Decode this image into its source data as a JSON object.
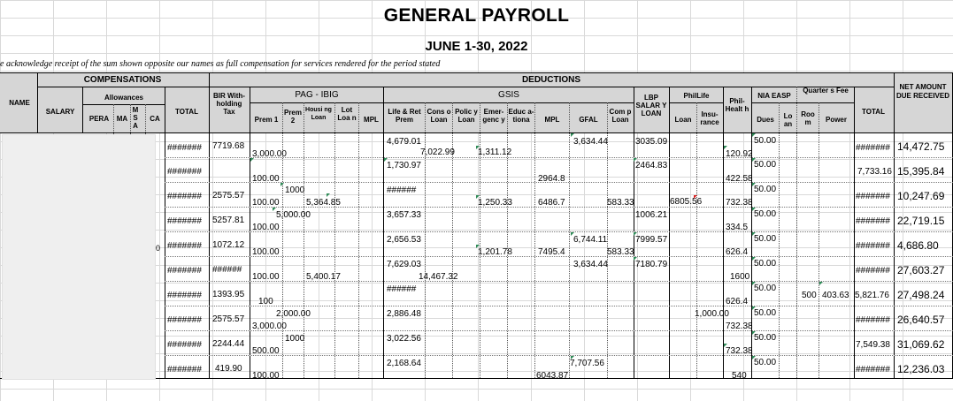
{
  "title": "GENERAL PAYROLL",
  "period": "JUNE 1-30, 2022",
  "acknowledgment": "e acknowledge receipt of the sum shown opposite our names as full compensation for services rendered for the period stated",
  "headers": {
    "name": "NAME",
    "compensations": "COMPENSATIONS",
    "salary": "SALARY",
    "allowances": "Allowances",
    "pera": "PERA",
    "ma": "MA",
    "msa": "M S A",
    "ca": "CA",
    "total1": "TOTAL",
    "deductions": "DEDUCTIONS",
    "bir": "BIR With- holding Tax",
    "pagibig": "PAG - IBIG",
    "prem1": "Prem 1",
    "prem2": "Prem 2",
    "housing": "Housi ng Loan",
    "lotloan": "Lot Loa n",
    "mpl1": "MPL",
    "gsis": "GSIS",
    "liferet": "Life & Ret Prem",
    "conso": "Cons o Loan",
    "policy": "Polic y Loan",
    "emergency": "Emer- genc y",
    "educ": "Educ a- tiona",
    "mpl2": "MPL",
    "gfal": "GFAL",
    "comp": "Com p Loan",
    "lbp": "LBP SALAR Y LOAN",
    "philife": "PhilLife",
    "loan": "Loan",
    "insurance": "Insu- rance",
    "philhealth": "Phil- Healt h",
    "niaeasp": "NIA EASP",
    "dues": "Dues",
    "loan2": "Lo an",
    "quarters": "Quarter s Fee",
    "room": "Roo m",
    "power": "Power",
    "total2": "TOTAL",
    "net": "NET AMOUNT DUE RECEIVED"
  },
  "rows": [
    {
      "total": "#######",
      "bir": "7719.68",
      "prem1": "3,000.00",
      "liferet": "4,679.01",
      "conso": "7,022.99",
      "policy": "1,311.12",
      "gfal": "3,634.44",
      "lbp": "3035.09",
      "philhealth": "120.92",
      "dues": "50.00",
      "ded_total": "#######",
      "net": "14,472.75"
    },
    {
      "total": "#######",
      "prem1": "100.00",
      "liferet": "1,730.97",
      "mpl2": "2964.8",
      "lbp": "2464.83",
      "philhealth": "422.58",
      "dues": "50.00",
      "ded_total": "7,733.16",
      "net": "15,395.84"
    },
    {
      "total": "#######",
      "bir": "2575.57",
      "prem1": "100.00",
      "prem2": "1000",
      "housing": "5,364.85",
      "liferet": "######",
      "policy": "1,250.33",
      "mpl2": "6486.7",
      "comp": "583.33",
      "ins": "6805.56",
      "philhealth": "732.38",
      "dues": "50.00",
      "ded_total": "#######",
      "net": "10,247.69"
    },
    {
      "total": "#######",
      "bir": "5257.81",
      "prem1": "100.00",
      "prem2": "5,000.00",
      "liferet": "3,657.33",
      "lbp": "1006.21",
      "philhealth": "334.5",
      "dues": "50.00",
      "ded_total": "#######",
      "net": "22,719.15"
    },
    {
      "total": "#######",
      "bir": "1072.12",
      "prem1": "100.00",
      "liferet": "2,656.53",
      "policy": "1,201.78",
      "mpl2": "7495.4",
      "gfal": "6,744.11",
      "comp": "583.33",
      "lbp": "7999.57",
      "philhealth": "626.4",
      "dues": "50.00",
      "ded_total": "#######",
      "net": "4,686.80"
    },
    {
      "total": "#######",
      "bir": "######",
      "prem1": "100.00",
      "housing": "5,400.17",
      "liferet": "7,629.03",
      "conso": "14,467.32",
      "gfal": "3,634.44",
      "lbp": "7180.79",
      "philhealth": "1600",
      "dues": "50.00",
      "ded_total": "#######",
      "net": "27,603.27"
    },
    {
      "total": "#######",
      "bir": "1393.95",
      "prem1": "100",
      "liferet": "######",
      "philhealth": "626.4",
      "dues": "50.00",
      "room": "500",
      "power": "403.63",
      "ded_total": "5,821.76",
      "net": "27,498.24"
    },
    {
      "total": "#######",
      "bir": "2575.57",
      "prem1": "3,000.00",
      "prem2": "2,000.00",
      "liferet": "2,886.48",
      "plloan": "1,000.00",
      "philhealth": "732.38",
      "dues": "50.00",
      "ded_total": "#######",
      "net": "26,640.57"
    },
    {
      "total": "#######",
      "bir": "2244.44",
      "prem1": "500.00",
      "prem2": "1000",
      "liferet": "3,022.56",
      "philhealth": "732.38",
      "dues": "50.00",
      "ded_total": "7,549.38",
      "net": "31,069.62"
    },
    {
      "total": "#######",
      "bir": "419.90",
      "prem1": "100.00",
      "liferet": "2,168.64",
      "gfal": "7,707.56",
      "mpl2": "6043.87",
      "philhealth": "540",
      "dues": "50.00",
      "ded_total": "#######",
      "net": "12,236.03"
    }
  ],
  "stray_digit": "0",
  "colors": {
    "header_bg": "#d6d6d6",
    "grid": "#d9d9d9",
    "comment_marker": "#2e8b57",
    "error_marker": "#d22222"
  }
}
